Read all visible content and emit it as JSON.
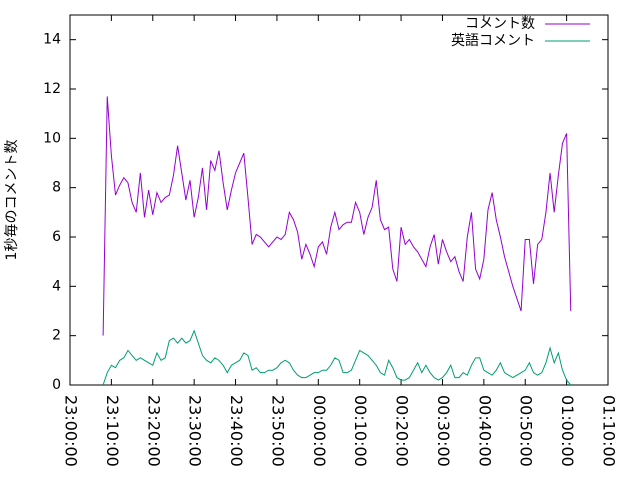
{
  "chart_data": {
    "type": "line",
    "ylabel": "1秒毎のコメント数",
    "x": [
      "23:08:00",
      "23:09:00",
      "23:10:00",
      "23:11:00",
      "23:12:00",
      "23:13:00",
      "23:14:00",
      "23:15:00",
      "23:16:00",
      "23:17:00",
      "23:18:00",
      "23:19:00",
      "23:20:00",
      "23:21:00",
      "23:22:00",
      "23:23:00",
      "23:24:00",
      "23:25:00",
      "23:26:00",
      "23:27:00",
      "23:28:00",
      "23:29:00",
      "23:30:00",
      "23:31:00",
      "23:32:00",
      "23:33:00",
      "23:34:00",
      "23:35:00",
      "23:36:00",
      "23:37:00",
      "23:38:00",
      "23:39:00",
      "23:40:00",
      "23:41:00",
      "23:42:00",
      "23:43:00",
      "23:44:00",
      "23:45:00",
      "23:46:00",
      "23:47:00",
      "23:48:00",
      "23:49:00",
      "23:50:00",
      "23:51:00",
      "23:52:00",
      "23:53:00",
      "23:54:00",
      "23:55:00",
      "23:56:00",
      "23:57:00",
      "23:58:00",
      "23:59:00",
      "00:00:00",
      "00:01:00",
      "00:02:00",
      "00:03:00",
      "00:04:00",
      "00:05:00",
      "00:06:00",
      "00:07:00",
      "00:08:00",
      "00:09:00",
      "00:10:00",
      "00:11:00",
      "00:12:00",
      "00:13:00",
      "00:14:00",
      "00:15:00",
      "00:16:00",
      "00:17:00",
      "00:18:00",
      "00:19:00",
      "00:20:00",
      "00:21:00",
      "00:22:00",
      "00:23:00",
      "00:24:00",
      "00:25:00",
      "00:26:00",
      "00:27:00",
      "00:28:00",
      "00:29:00",
      "00:30:00",
      "00:31:00",
      "00:32:00",
      "00:33:00",
      "00:34:00",
      "00:35:00",
      "00:36:00",
      "00:37:00",
      "00:38:00",
      "00:39:00",
      "00:40:00",
      "00:41:00",
      "00:42:00",
      "00:43:00",
      "00:44:00",
      "00:45:00",
      "00:46:00",
      "00:47:00",
      "00:48:00",
      "00:49:00",
      "00:50:00",
      "00:51:00",
      "00:52:00",
      "00:53:00",
      "00:54:00",
      "00:55:00",
      "00:56:00",
      "00:57:00",
      "00:58:00",
      "00:59:00",
      "01:00:00",
      "01:01:00"
    ],
    "series": [
      {
        "name": "コメント数",
        "color": "#9400d3",
        "values": [
          2.0,
          11.7,
          9.3,
          7.7,
          8.1,
          8.4,
          8.2,
          7.4,
          7.0,
          8.6,
          6.8,
          7.9,
          6.9,
          7.8,
          7.4,
          7.6,
          7.7,
          8.5,
          9.7,
          8.6,
          7.5,
          8.3,
          6.8,
          7.6,
          8.8,
          7.1,
          9.1,
          8.7,
          9.5,
          8.2,
          7.1,
          7.9,
          8.6,
          9.0,
          9.4,
          7.6,
          5.7,
          6.1,
          6.0,
          5.8,
          5.6,
          5.8,
          6.0,
          5.9,
          6.1,
          7.0,
          6.7,
          6.2,
          5.1,
          5.7,
          5.3,
          4.8,
          5.6,
          5.8,
          5.3,
          6.4,
          7.0,
          6.3,
          6.5,
          6.6,
          6.6,
          7.4,
          7.0,
          6.1,
          6.8,
          7.2,
          8.3,
          6.7,
          6.3,
          6.4,
          4.7,
          4.2,
          6.4,
          5.7,
          5.9,
          5.6,
          5.4,
          5.1,
          4.8,
          5.6,
          6.1,
          4.9,
          5.9,
          5.4,
          5.0,
          5.2,
          4.6,
          4.2,
          6.0,
          7.0,
          4.7,
          4.3,
          5.1,
          7.1,
          7.8,
          6.7,
          6.0,
          5.2,
          4.6,
          4.0,
          3.5,
          3.0,
          5.9,
          5.9,
          4.1,
          5.7,
          5.9,
          7.0,
          8.6,
          7.0,
          8.5,
          9.8,
          10.2,
          3.0
        ]
      },
      {
        "name": "英語コメント",
        "color": "#009e73",
        "values": [
          0.0,
          0.5,
          0.8,
          0.7,
          1.0,
          1.1,
          1.4,
          1.2,
          1.0,
          1.1,
          1.0,
          0.9,
          0.8,
          1.3,
          1.0,
          1.1,
          1.8,
          1.9,
          1.7,
          1.9,
          1.7,
          1.8,
          2.2,
          1.7,
          1.2,
          1.0,
          0.9,
          1.1,
          1.0,
          0.8,
          0.5,
          0.8,
          0.9,
          1.0,
          1.3,
          1.2,
          0.6,
          0.7,
          0.5,
          0.5,
          0.6,
          0.6,
          0.7,
          0.9,
          1.0,
          0.9,
          0.6,
          0.4,
          0.3,
          0.3,
          0.4,
          0.5,
          0.5,
          0.6,
          0.6,
          0.8,
          1.1,
          1.0,
          0.5,
          0.5,
          0.6,
          1.0,
          1.4,
          1.3,
          1.2,
          1.0,
          0.8,
          0.5,
          0.4,
          1.0,
          0.7,
          0.3,
          0.2,
          0.2,
          0.3,
          0.6,
          0.9,
          0.5,
          0.8,
          0.5,
          0.3,
          0.2,
          0.3,
          0.5,
          0.8,
          0.3,
          0.3,
          0.5,
          0.4,
          0.8,
          1.1,
          1.1,
          0.6,
          0.5,
          0.4,
          0.6,
          0.9,
          0.5,
          0.4,
          0.3,
          0.4,
          0.5,
          0.6,
          0.9,
          0.5,
          0.4,
          0.5,
          0.9,
          1.5,
          0.9,
          1.3,
          0.6,
          0.2,
          0.0
        ]
      }
    ],
    "xlim": [
      "23:00:00",
      "01:10:00"
    ],
    "xticks": [
      "23:00:00",
      "23:10:00",
      "23:20:00",
      "23:30:00",
      "23:40:00",
      "23:50:00",
      "00:00:00",
      "00:10:00",
      "00:20:00",
      "00:30:00",
      "00:40:00",
      "00:50:00",
      "01:00:00",
      "01:10:00"
    ],
    "ylim": [
      0,
      15
    ],
    "yticks": [
      0,
      2,
      4,
      6,
      8,
      10,
      12,
      14
    ],
    "legend": "upper right"
  }
}
